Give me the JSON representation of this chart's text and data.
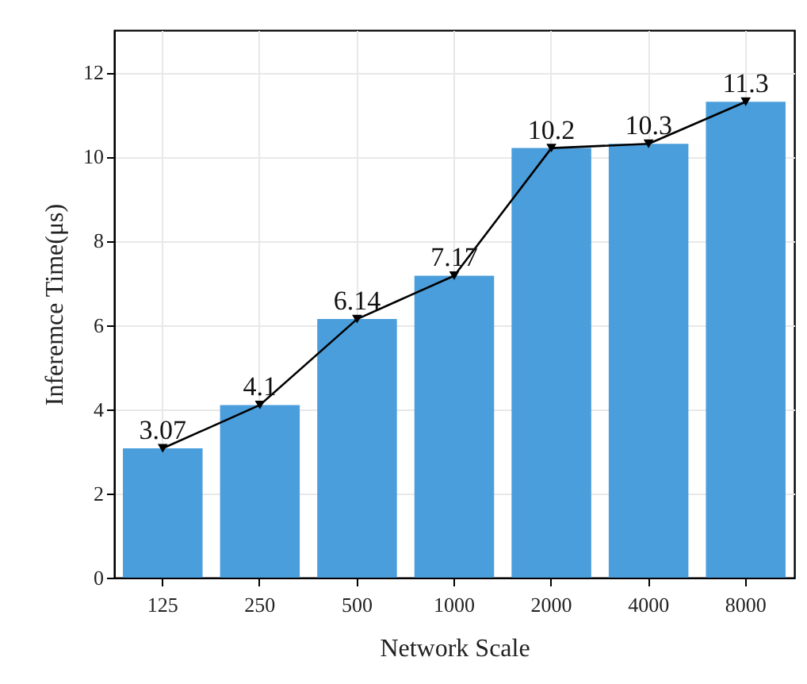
{
  "chart_data": {
    "type": "bar",
    "xlabel": "Network Scale",
    "ylabel": "Inferemce Time(μs)",
    "categories": [
      "125",
      "250",
      "500",
      "1000",
      "2000",
      "4000",
      "8000"
    ],
    "series": [
      {
        "color": "#4a9edb",
        "values": [
          3.07,
          4.1,
          6.14,
          7.17,
          10.2,
          10.3,
          11.3
        ]
      },
      {
        "type": "line",
        "color": "#000000",
        "marker": "triangle",
        "values": [
          3.07,
          4.1,
          6.14,
          7.17,
          10.2,
          10.3,
          11.3
        ],
        "value_labels": [
          "3.07",
          "4.1",
          "6.14",
          "7.17",
          "10.2",
          "10.3",
          "11.3"
        ]
      }
    ],
    "ylim": [
      0,
      13
    ],
    "yticks": [
      0,
      2,
      4,
      6,
      8,
      10,
      12
    ],
    "grid": true
  }
}
